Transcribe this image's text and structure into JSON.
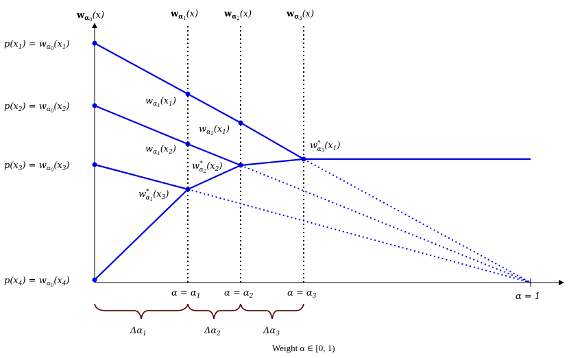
{
  "column_labels": {
    "w0": "w",
    "w0_sub": "α",
    "w0_subsub": "0",
    "w0_arg": "(x)",
    "w1": "w",
    "w1_sub": "α",
    "w1_subsub": "1",
    "w1_arg": "(x)",
    "w2": "w",
    "w2_sub": "α",
    "w2_subsub": "2",
    "w2_arg": "(x)",
    "w3": "w",
    "w3_sub": "α",
    "w3_subsub": "3",
    "w3_arg": "(x)"
  },
  "left_labels": [
    {
      "lhs": "p(x",
      "idx": "1",
      "rhs": ") = w",
      "sub": "α",
      "subsub": "0",
      "arg": "(x",
      "argidx": "1",
      "end": ")"
    },
    {
      "lhs": "p(x",
      "idx": "2",
      "rhs": ") = w",
      "sub": "α",
      "subsub": "0",
      "arg": "(x",
      "argidx": "2",
      "end": ")"
    },
    {
      "lhs": "p(x",
      "idx": "3",
      "rhs": ") = w",
      "sub": "α",
      "subsub": "0",
      "arg": "(x",
      "argidx": "3",
      "end": ")"
    },
    {
      "lhs": "p(x",
      "idx": "4",
      "rhs": ") = w",
      "sub": "α",
      "subsub": "0",
      "arg": "(x",
      "argidx": "4",
      "end": ")"
    }
  ],
  "point_labels": {
    "wa1x1": {
      "w": "w",
      "sub": "α",
      "subsub": "1",
      "arg": "(x",
      "argidx": "1",
      "end": ")"
    },
    "wa2x1": {
      "w": "w",
      "sub": "α",
      "subsub": "2",
      "arg": "(x",
      "argidx": "1",
      "end": ")"
    },
    "wa1x2": {
      "w": "w",
      "sub": "α",
      "subsub": "1",
      "arg": "(x",
      "argidx": "2",
      "end": ")"
    },
    "wa3x1": {
      "w": "w",
      "star": "*",
      "sub": "α",
      "subsub": "3",
      "arg": "(x",
      "argidx": "1",
      "end": ")"
    },
    "wa2x2": {
      "w": "w",
      "star": "*",
      "sub": "α",
      "subsub": "2",
      "arg": "(x",
      "argidx": "2",
      "end": ")"
    },
    "wa1x3": {
      "w": "w",
      "star": "*",
      "sub": "α",
      "subsub": "1",
      "arg": "(x",
      "argidx": "3",
      "end": ")"
    }
  },
  "axis_labels": {
    "a1": {
      "lhs": "α = α",
      "idx": "1"
    },
    "a2": {
      "lhs": "α = α",
      "idx": "2"
    },
    "a3": {
      "lhs": "α = α",
      "idx": "3"
    },
    "a_end": {
      "lhs": "α = 1"
    },
    "xlabel": "Weight α ∈ [0, 1)"
  },
  "brace_labels": {
    "d1": {
      "lhs": "Δα",
      "idx": "1"
    },
    "d2": {
      "lhs": "Δα",
      "idx": "2"
    },
    "d3": {
      "lhs": "Δα",
      "idx": "3"
    }
  },
  "colors": {
    "line": "#0000e6",
    "axis": "#000000",
    "brace": "#5a0f0f"
  }
}
